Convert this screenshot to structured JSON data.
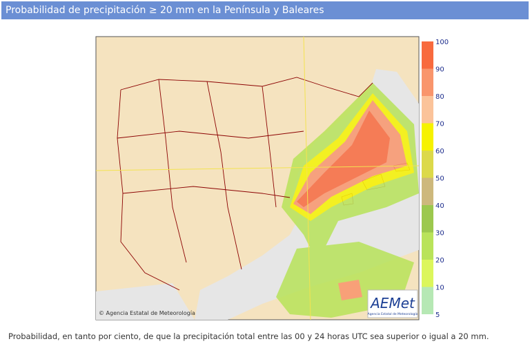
{
  "header": {
    "title": "Probabilidad de precipitación ≥ 20 mm en la Península y Baleares"
  },
  "map": {
    "copyright": "© Agencia Estatal de Meteorología",
    "logo": "AEMet",
    "logo_subtitle": "Agencia Estatal de Meteorología"
  },
  "legend": {
    "ticks": [
      100,
      90,
      80,
      70,
      60,
      50,
      40,
      30,
      20,
      10,
      5
    ],
    "colors": [
      "#f86a3e",
      "#f9956c",
      "#fbc39a",
      "#f6f200",
      "#dcd94a",
      "#cdb87c",
      "#9cc84e",
      "#b9e35a",
      "#dcf65c",
      "#b6e8b4"
    ]
  },
  "caption": "Probabilidad, en tanto por ciento, de que la precipitación total entre las 00 y 24 horas UTC sea superior o igual a 20 mm."
}
